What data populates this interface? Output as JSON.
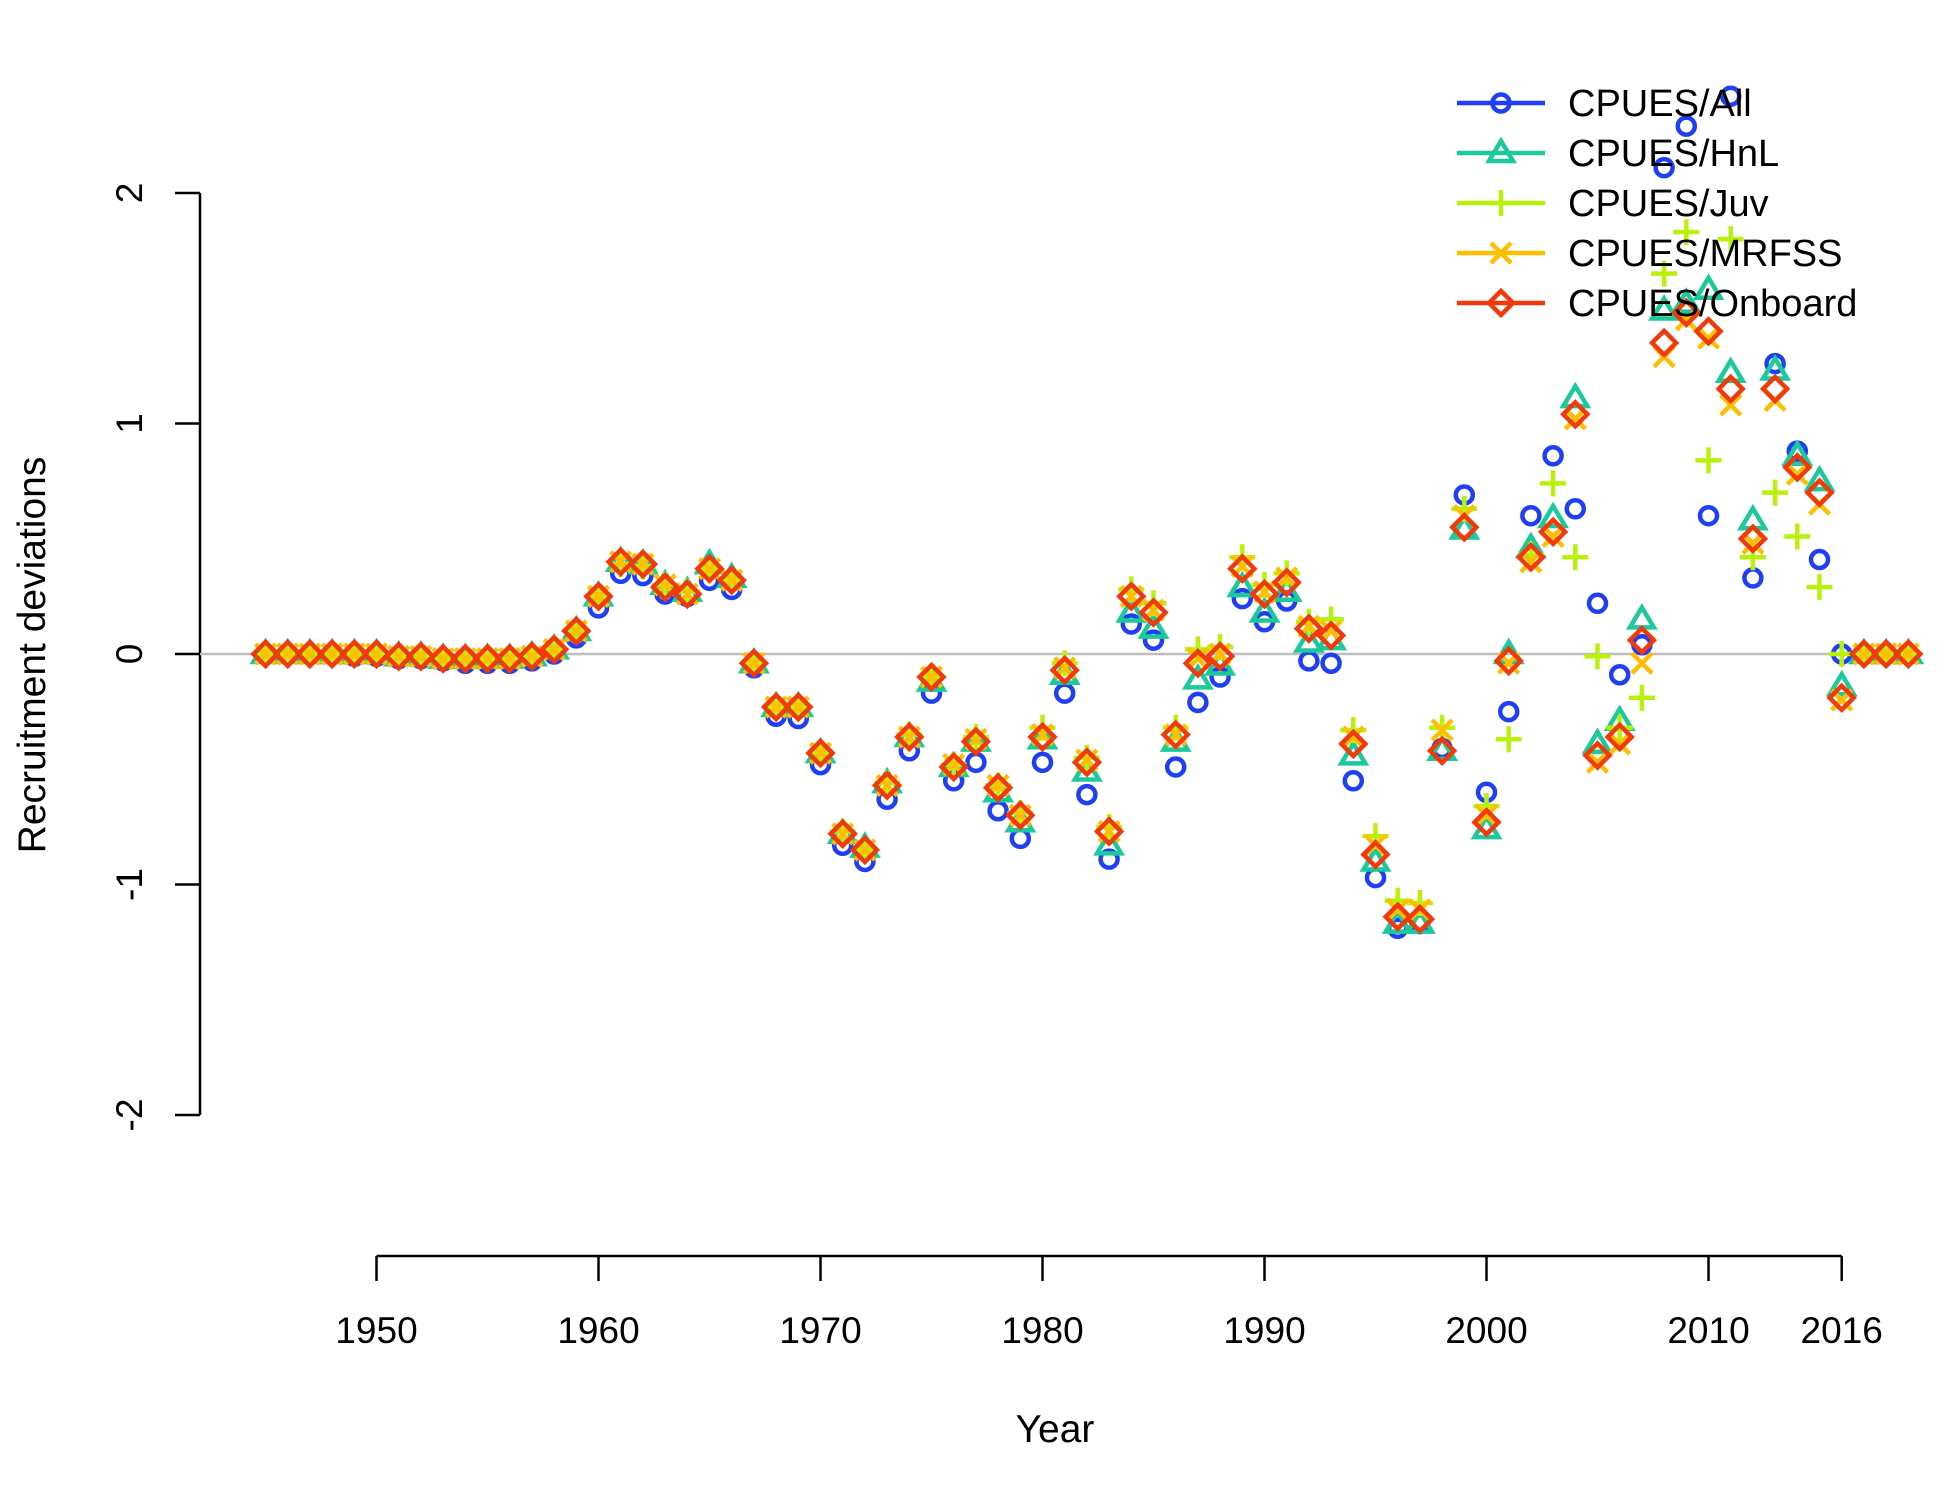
{
  "chart_data": {
    "type": "scatter",
    "xlabel": "Year",
    "ylabel": "Recruitment deviations",
    "xlim": [
      1940,
      2019
    ],
    "ylim": [
      -2.4,
      2.5
    ],
    "x_ticks": [
      1950,
      1960,
      1970,
      1980,
      1990,
      2000,
      2010,
      2016
    ],
    "y_ticks": [
      -2,
      -1,
      0,
      1,
      2
    ],
    "reference_line_y": 0,
    "grid": false,
    "legend_position": "top-right",
    "x": [
      1945,
      1946,
      1947,
      1948,
      1949,
      1950,
      1951,
      1952,
      1953,
      1954,
      1955,
      1956,
      1957,
      1958,
      1959,
      1960,
      1961,
      1962,
      1963,
      1964,
      1965,
      1966,
      1967,
      1968,
      1969,
      1970,
      1971,
      1972,
      1973,
      1974,
      1975,
      1976,
      1977,
      1978,
      1979,
      1980,
      1981,
      1982,
      1983,
      1984,
      1985,
      1986,
      1987,
      1988,
      1989,
      1990,
      1991,
      1992,
      1993,
      1994,
      1995,
      1996,
      1997,
      1998,
      1999,
      2000,
      2001,
      2002,
      2003,
      2004,
      2005,
      2006,
      2007,
      2008,
      2009,
      2010,
      2011,
      2012,
      2013,
      2014,
      2015,
      2016,
      2017,
      2018,
      2019
    ],
    "series": [
      {
        "name": "CPUES/All",
        "marker": "circle",
        "color": "#1f3ff5",
        "values": [
          0,
          0,
          0,
          0,
          -0.01,
          -0.01,
          -0.02,
          -0.02,
          -0.03,
          -0.04,
          -0.04,
          -0.04,
          -0.03,
          0,
          0.07,
          0.2,
          0.35,
          0.34,
          0.26,
          0.25,
          0.32,
          0.28,
          -0.06,
          -0.27,
          -0.28,
          -0.48,
          -0.83,
          -0.9,
          -0.63,
          -0.42,
          -0.17,
          -0.55,
          -0.47,
          -0.68,
          -0.8,
          -0.47,
          -0.17,
          -0.61,
          -0.89,
          0.13,
          0.06,
          -0.49,
          -0.21,
          -0.1,
          0.24,
          0.14,
          0.23,
          -0.03,
          -0.04,
          -0.55,
          -0.97,
          -1.19,
          -1.17,
          -0.41,
          0.69,
          -0.6,
          -0.25,
          0.6,
          0.86,
          0.63,
          0.22,
          -0.09,
          0.04,
          2.11,
          2.29,
          0.6,
          2.42,
          0.33,
          1.26,
          0.88,
          0.41,
          0,
          0,
          0,
          0
        ]
      },
      {
        "name": "CPUES/HnL",
        "marker": "triangle",
        "color": "#1bc99a",
        "values": [
          0,
          0,
          0,
          0,
          0,
          0,
          -0.01,
          -0.01,
          -0.02,
          -0.02,
          -0.02,
          -0.02,
          -0.01,
          0.02,
          0.1,
          0.25,
          0.4,
          0.39,
          0.3,
          0.27,
          0.39,
          0.33,
          -0.04,
          -0.23,
          -0.23,
          -0.43,
          -0.78,
          -0.84,
          -0.56,
          -0.36,
          -0.12,
          -0.49,
          -0.38,
          -0.6,
          -0.73,
          -0.37,
          -0.09,
          -0.51,
          -0.83,
          0.18,
          0.11,
          -0.38,
          -0.11,
          -0.05,
          0.29,
          0.18,
          0.27,
          0.05,
          0.06,
          -0.44,
          -0.9,
          -1.17,
          -1.17,
          -0.42,
          0.54,
          -0.76,
          0,
          0.46,
          0.59,
          1.11,
          -0.39,
          -0.29,
          0.15,
          1.49,
          1.52,
          1.58,
          1.22,
          0.58,
          1.23,
          0.86,
          0.75,
          -0.14,
          0,
          0,
          0
        ]
      },
      {
        "name": "CPUES/Juv",
        "marker": "plus",
        "color": "#b8f20b",
        "values": [
          0,
          0,
          0,
          0,
          0,
          0,
          -0.01,
          -0.01,
          -0.02,
          -0.02,
          -0.02,
          -0.02,
          -0.01,
          0.02,
          0.1,
          0.25,
          0.39,
          0.38,
          0.3,
          0.27,
          0.37,
          0.32,
          -0.04,
          -0.23,
          -0.23,
          -0.43,
          -0.77,
          -0.85,
          -0.56,
          -0.35,
          -0.1,
          -0.48,
          -0.36,
          -0.57,
          -0.69,
          -0.32,
          -0.04,
          -0.45,
          -0.75,
          0.28,
          0.22,
          -0.32,
          0.02,
          0.03,
          0.42,
          0.3,
          0.35,
          0.14,
          0.15,
          -0.33,
          -0.79,
          -1.07,
          -1.08,
          -0.32,
          0.63,
          -0.66,
          -0.37,
          0.43,
          0.74,
          0.42,
          -0.01,
          -0.32,
          -0.19,
          1.65,
          1.83,
          0.84,
          1.8,
          0.42,
          0.7,
          0.51,
          0.29,
          0,
          0,
          0,
          0
        ]
      },
      {
        "name": "CPUES/MRFSS",
        "marker": "cross",
        "color": "#ffbf00",
        "values": [
          0,
          0,
          0,
          0,
          0,
          0,
          -0.01,
          -0.01,
          -0.02,
          -0.02,
          -0.02,
          -0.02,
          -0.01,
          0.02,
          0.1,
          0.25,
          0.4,
          0.39,
          0.3,
          0.26,
          0.37,
          0.32,
          -0.04,
          -0.23,
          -0.23,
          -0.43,
          -0.78,
          -0.85,
          -0.57,
          -0.36,
          -0.1,
          -0.48,
          -0.37,
          -0.57,
          -0.7,
          -0.35,
          -0.06,
          -0.46,
          -0.77,
          0.25,
          0.19,
          -0.35,
          -0.02,
          0,
          0.38,
          0.27,
          0.33,
          0.12,
          0.1,
          -0.36,
          -0.83,
          -1.11,
          -1.11,
          -0.33,
          0.6,
          -0.7,
          -0.04,
          0.4,
          0.51,
          1.02,
          -0.47,
          -0.39,
          -0.04,
          1.29,
          1.45,
          1.37,
          1.08,
          0.48,
          1.1,
          0.78,
          0.65,
          -0.2,
          0,
          0,
          0
        ]
      },
      {
        "name": "CPUES/Onboard",
        "marker": "diamond",
        "color": "#f2390a",
        "values": [
          0,
          0,
          0,
          0,
          0,
          0,
          -0.01,
          -0.01,
          -0.02,
          -0.02,
          -0.02,
          -0.02,
          -0.01,
          0.02,
          0.1,
          0.25,
          0.4,
          0.39,
          0.29,
          0.26,
          0.37,
          0.32,
          -0.04,
          -0.23,
          -0.23,
          -0.43,
          -0.78,
          -0.85,
          -0.57,
          -0.36,
          -0.1,
          -0.49,
          -0.38,
          -0.58,
          -0.7,
          -0.36,
          -0.07,
          -0.47,
          -0.77,
          0.25,
          0.18,
          -0.35,
          -0.04,
          -0.01,
          0.37,
          0.26,
          0.31,
          0.11,
          0.08,
          -0.39,
          -0.87,
          -1.14,
          -1.15,
          -0.42,
          0.55,
          -0.73,
          -0.03,
          0.42,
          0.53,
          1.04,
          -0.44,
          -0.36,
          0.06,
          1.35,
          1.48,
          1.4,
          1.15,
          0.5,
          1.15,
          0.81,
          0.7,
          -0.19,
          0,
          0,
          0
        ]
      }
    ]
  }
}
